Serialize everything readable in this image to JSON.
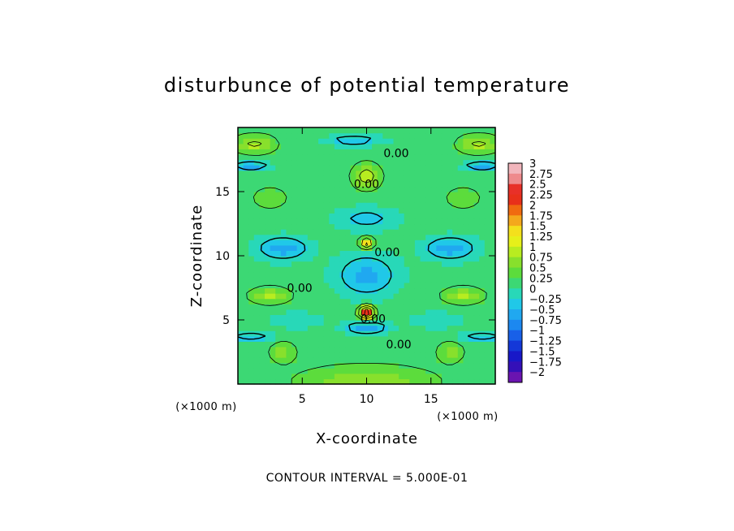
{
  "chart_data": {
    "type": "heatmap",
    "title": "disturbunce of potential temperature",
    "xlabel": "X-coordinate",
    "ylabel": "Z-coordinate",
    "x_unit": "(×1000 m)",
    "z_unit": "(×1000 m)",
    "xlim": [
      0,
      20
    ],
    "ylim": [
      0,
      20
    ],
    "x_ticks": [
      {
        "value": 5,
        "label": "5"
      },
      {
        "value": 10,
        "label": "10"
      },
      {
        "value": 15,
        "label": "15"
      }
    ],
    "y_ticks": [
      {
        "value": 5,
        "label": "5"
      },
      {
        "value": 10,
        "label": "10"
      },
      {
        "value": 15,
        "label": "15"
      }
    ],
    "colorbar": {
      "levels": [
        "3",
        "2.75",
        "2.5",
        "2.25",
        "2",
        "1.75",
        "1.5",
        "1.25",
        "1",
        "0.75",
        "0.5",
        "0.25",
        "0",
        "−0.25",
        "−0.5",
        "−0.75",
        "−1",
        "−1.25",
        "−1.5",
        "−1.75",
        "−2"
      ],
      "colors": [
        "#f2b6bc",
        "#ee8a8c",
        "#e83028",
        "#e8301a",
        "#f06a10",
        "#f4a81c",
        "#f4e01c",
        "#e6f01a",
        "#b8ec20",
        "#88e02c",
        "#5cdc3c",
        "#3cd874",
        "#28d8b8",
        "#20c8e8",
        "#20a8f0",
        "#1c88f0",
        "#1860e8",
        "#1438d8",
        "#1818c8",
        "#3410b8",
        "#6a14b0"
      ]
    },
    "contour_interval": "CONTOUR INTERVAL = 5.000E-01",
    "contour_labels": [
      {
        "text": "0.00",
        "x": 12.3,
        "z": 18.0
      },
      {
        "text": "0.00",
        "x": 10.0,
        "z": 15.6
      },
      {
        "text": "0.00",
        "x": 11.6,
        "z": 10.3
      },
      {
        "text": "0.00",
        "x": 4.8,
        "z": 7.5
      },
      {
        "text": "0.00",
        "x": 10.5,
        "z": 5.1
      },
      {
        "text": "0.00",
        "x": 12.5,
        "z": 3.1
      }
    ],
    "features": {
      "background": 0.35,
      "warm_blobs": [
        {
          "x": 10.0,
          "z": 5.6,
          "amp": 2.4,
          "sx": 0.55,
          "sz": 0.45
        },
        {
          "x": 10.0,
          "z": 11.0,
          "amp": 1.6,
          "sx": 0.5,
          "sz": 0.4
        },
        {
          "x": 10.0,
          "z": 16.2,
          "amp": 0.9,
          "sx": 1.0,
          "sz": 0.9
        },
        {
          "x": 1.3,
          "z": 18.7,
          "amp": 0.75,
          "sx": 1.5,
          "sz": 0.7
        },
        {
          "x": 18.7,
          "z": 18.7,
          "amp": 0.75,
          "sx": 1.5,
          "sz": 0.7
        },
        {
          "x": 10.0,
          "z": 0.2,
          "amp": 0.6,
          "sx": 5.0,
          "sz": 1.2
        },
        {
          "x": 2.5,
          "z": 6.9,
          "amp": 0.7,
          "sx": 1.5,
          "sz": 0.6
        },
        {
          "x": 17.5,
          "z": 6.9,
          "amp": 0.7,
          "sx": 1.5,
          "sz": 0.6
        },
        {
          "x": 3.5,
          "z": 2.5,
          "amp": 0.5,
          "sx": 1.0,
          "sz": 0.8
        },
        {
          "x": 16.5,
          "z": 2.5,
          "amp": 0.5,
          "sx": 1.0,
          "sz": 0.8
        },
        {
          "x": 2.5,
          "z": 14.5,
          "amp": 0.4,
          "sx": 1.3,
          "sz": 0.8
        },
        {
          "x": 17.5,
          "z": 14.5,
          "amp": 0.4,
          "sx": 1.3,
          "sz": 0.8
        }
      ],
      "cool_blobs": [
        {
          "x": 10.0,
          "z": 8.5,
          "amp": -0.7,
          "sx": 2.3,
          "sz": 1.6
        },
        {
          "x": 10.0,
          "z": 12.9,
          "amp": -0.45,
          "sx": 2.5,
          "sz": 0.9
        },
        {
          "x": 10.0,
          "z": 4.4,
          "amp": -0.85,
          "sx": 1.6,
          "sz": 0.45
        },
        {
          "x": 3.5,
          "z": 10.6,
          "amp": -0.75,
          "sx": 2.0,
          "sz": 0.9
        },
        {
          "x": 16.5,
          "z": 10.6,
          "amp": -0.75,
          "sx": 2.0,
          "sz": 0.9
        },
        {
          "x": 1.0,
          "z": 17.0,
          "amp": -0.8,
          "sx": 1.4,
          "sz": 0.35
        },
        {
          "x": 19.0,
          "z": 17.0,
          "amp": -0.8,
          "sx": 1.4,
          "sz": 0.35
        },
        {
          "x": 9.0,
          "z": 19.0,
          "amp": -0.6,
          "sx": 2.2,
          "sz": 0.4
        },
        {
          "x": 1.0,
          "z": 3.7,
          "amp": -0.6,
          "sx": 1.6,
          "sz": 0.35
        },
        {
          "x": 19.0,
          "z": 3.7,
          "amp": -0.6,
          "sx": 1.6,
          "sz": 0.35
        },
        {
          "x": 4.5,
          "z": 5.0,
          "amp": -0.35,
          "sx": 2.0,
          "sz": 0.6
        },
        {
          "x": 15.5,
          "z": 5.0,
          "amp": -0.35,
          "sx": 2.0,
          "sz": 0.6
        }
      ]
    }
  }
}
